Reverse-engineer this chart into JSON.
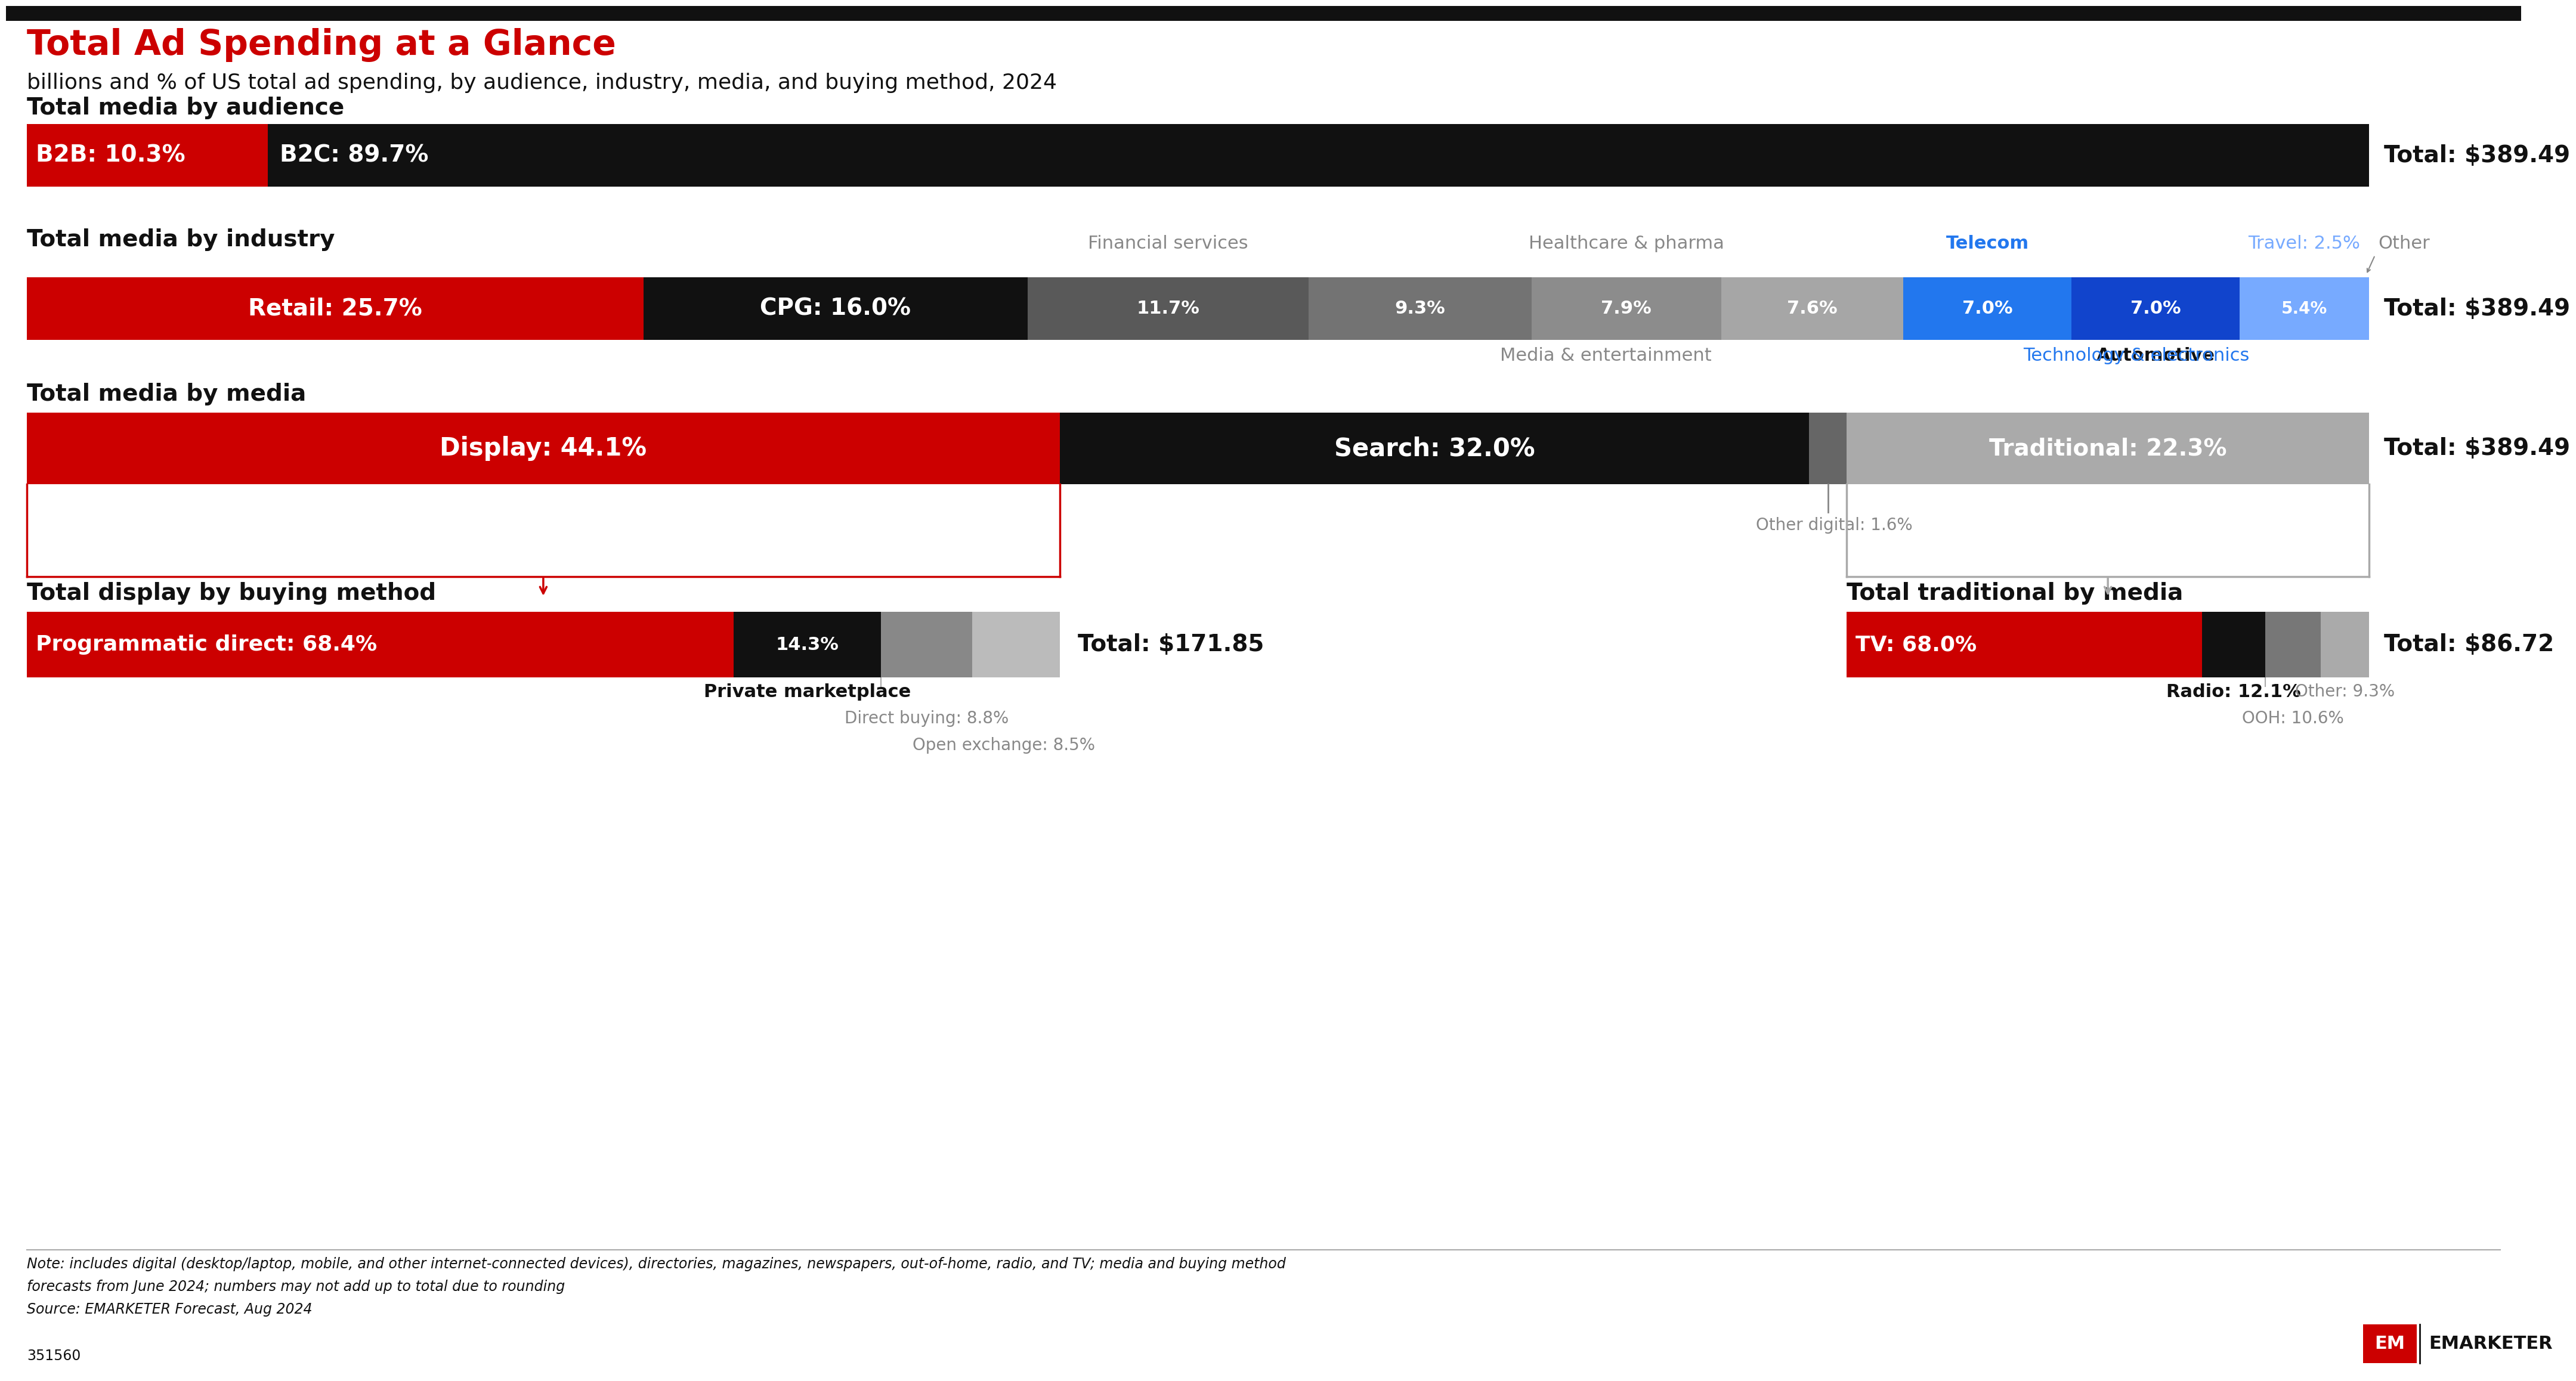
{
  "title": "Total Ad Spending at a Glance",
  "subtitle": "billions and % of US total ad spending, by audience, industry, media, and buying method, 2024",
  "note_line1": "Note: includes digital (desktop/laptop, mobile, and other internet-connected devices), directories, magazines, newspapers, out-of-home, radio, and TV; media and buying method",
  "note_line2": "forecasts from June 2024; numbers may not add up to total due to rounding",
  "note_line3": "Source: EMARKETER Forecast, Aug 2024",
  "footer": "351560",
  "audience_bar": {
    "segments": [
      {
        "label": "B2B: 10.3%",
        "pct": 10.3,
        "color": "#cc0000",
        "text_color": "white"
      },
      {
        "label": "B2C: 89.7%",
        "pct": 89.7,
        "color": "#111111",
        "text_color": "white"
      }
    ],
    "total": "Total: $389.49"
  },
  "industry_bar": {
    "segments": [
      {
        "label": "Retail: 25.7%",
        "pct": 25.7,
        "color": "#cc0000",
        "text_color": "white"
      },
      {
        "label": "CPG: 16.0%",
        "pct": 16.0,
        "color": "#111111",
        "text_color": "white"
      },
      {
        "label": "11.7%",
        "pct": 11.7,
        "color": "#595959",
        "text_color": "white"
      },
      {
        "label": "9.3%",
        "pct": 9.3,
        "color": "#737373",
        "text_color": "white"
      },
      {
        "label": "7.9%",
        "pct": 7.9,
        "color": "#8c8c8c",
        "text_color": "white"
      },
      {
        "label": "7.6%",
        "pct": 7.6,
        "color": "#a6a6a6",
        "text_color": "white"
      },
      {
        "label": "7.0%",
        "pct": 7.0,
        "color": "#2277ee",
        "text_color": "white"
      },
      {
        "label": "7.0%",
        "pct": 7.0,
        "color": "#1144cc",
        "text_color": "white"
      },
      {
        "label": "5.4%",
        "pct": 5.4,
        "color": "#77aaff",
        "text_color": "white"
      }
    ],
    "above_labels": [
      {
        "text": "Financial services",
        "seg_idx": 2,
        "color": "#888888",
        "bold": false
      },
      {
        "text": "Healthcare & pharma",
        "seg_idx": 4,
        "color": "#888888",
        "bold": false
      },
      {
        "text": "Telecom",
        "seg_idx": 6,
        "color": "#2277ee",
        "bold": true
      },
      {
        "text": "Travel: 2.5%",
        "seg_idx": 8,
        "color": "#77aaff",
        "bold": false
      },
      {
        "text": "Other",
        "seg_idx": 8,
        "color": "#888888",
        "bold": false,
        "offset_right": true
      }
    ],
    "below_labels": [
      {
        "text": "Media & entertainment",
        "seg_idx": 5,
        "color": "#888888",
        "bold": false
      },
      {
        "text": "Automotive",
        "seg_idx": 7,
        "color": "#111111",
        "bold": true
      },
      {
        "text": "Technology & electronics",
        "seg_idx": 8,
        "color": "#2277ee",
        "bold": false
      }
    ],
    "total": "Total: $389.49"
  },
  "media_bar": {
    "segments": [
      {
        "label": "Display: 44.1%",
        "pct": 44.1,
        "color": "#cc0000",
        "text_color": "white"
      },
      {
        "label": "Search: 32.0%",
        "pct": 32.0,
        "color": "#111111",
        "text_color": "white"
      },
      {
        "label": "",
        "pct": 1.6,
        "color": "#666666",
        "text_color": "white"
      },
      {
        "label": "Traditional: 22.3%",
        "pct": 22.3,
        "color": "#aaaaaa",
        "text_color": "white"
      }
    ],
    "other_digital_label": "Other digital: 1.6%",
    "total": "Total: $389.49"
  },
  "display_bar": {
    "segments": [
      {
        "label": "Programmatic direct: 68.4%",
        "pct": 68.4,
        "color": "#cc0000",
        "text_color": "white"
      },
      {
        "label": "14.3%",
        "pct": 14.3,
        "color": "#111111",
        "text_color": "white"
      },
      {
        "label": "",
        "pct": 8.8,
        "color": "#888888",
        "text_color": "white"
      },
      {
        "label": "",
        "pct": 8.5,
        "color": "#bbbbbb",
        "text_color": "white"
      }
    ],
    "total": "Total: $171.85",
    "below_labels": [
      {
        "text": "Private marketplace",
        "seg_idx": 1,
        "color": "#111111",
        "bold": true
      },
      {
        "text": "Direct buying: 8.8%",
        "seg_idx": 2,
        "color": "#888888",
        "bold": false
      },
      {
        "text": "Open exchange: 8.5%",
        "seg_idx": 3,
        "color": "#888888",
        "bold": false
      }
    ]
  },
  "traditional_bar": {
    "segments": [
      {
        "label": "TV: 68.0%",
        "pct": 68.0,
        "color": "#cc0000",
        "text_color": "white"
      },
      {
        "label": "",
        "pct": 12.1,
        "color": "#111111",
        "text_color": "white"
      },
      {
        "label": "",
        "pct": 10.6,
        "color": "#777777",
        "text_color": "white"
      },
      {
        "label": "",
        "pct": 9.3,
        "color": "#aaaaaa",
        "text_color": "white"
      }
    ],
    "total": "Total: $86.72",
    "below_labels": [
      {
        "text": "Radio: 12.1%",
        "seg_idx": 1,
        "color": "#111111",
        "bold": true
      },
      {
        "text": "Other: 9.3%",
        "seg_idx": 3,
        "color": "#888888",
        "bold": false
      },
      {
        "text": "OOH: 10.6%",
        "seg_idx": 2,
        "color": "#888888",
        "bold": false
      }
    ]
  }
}
